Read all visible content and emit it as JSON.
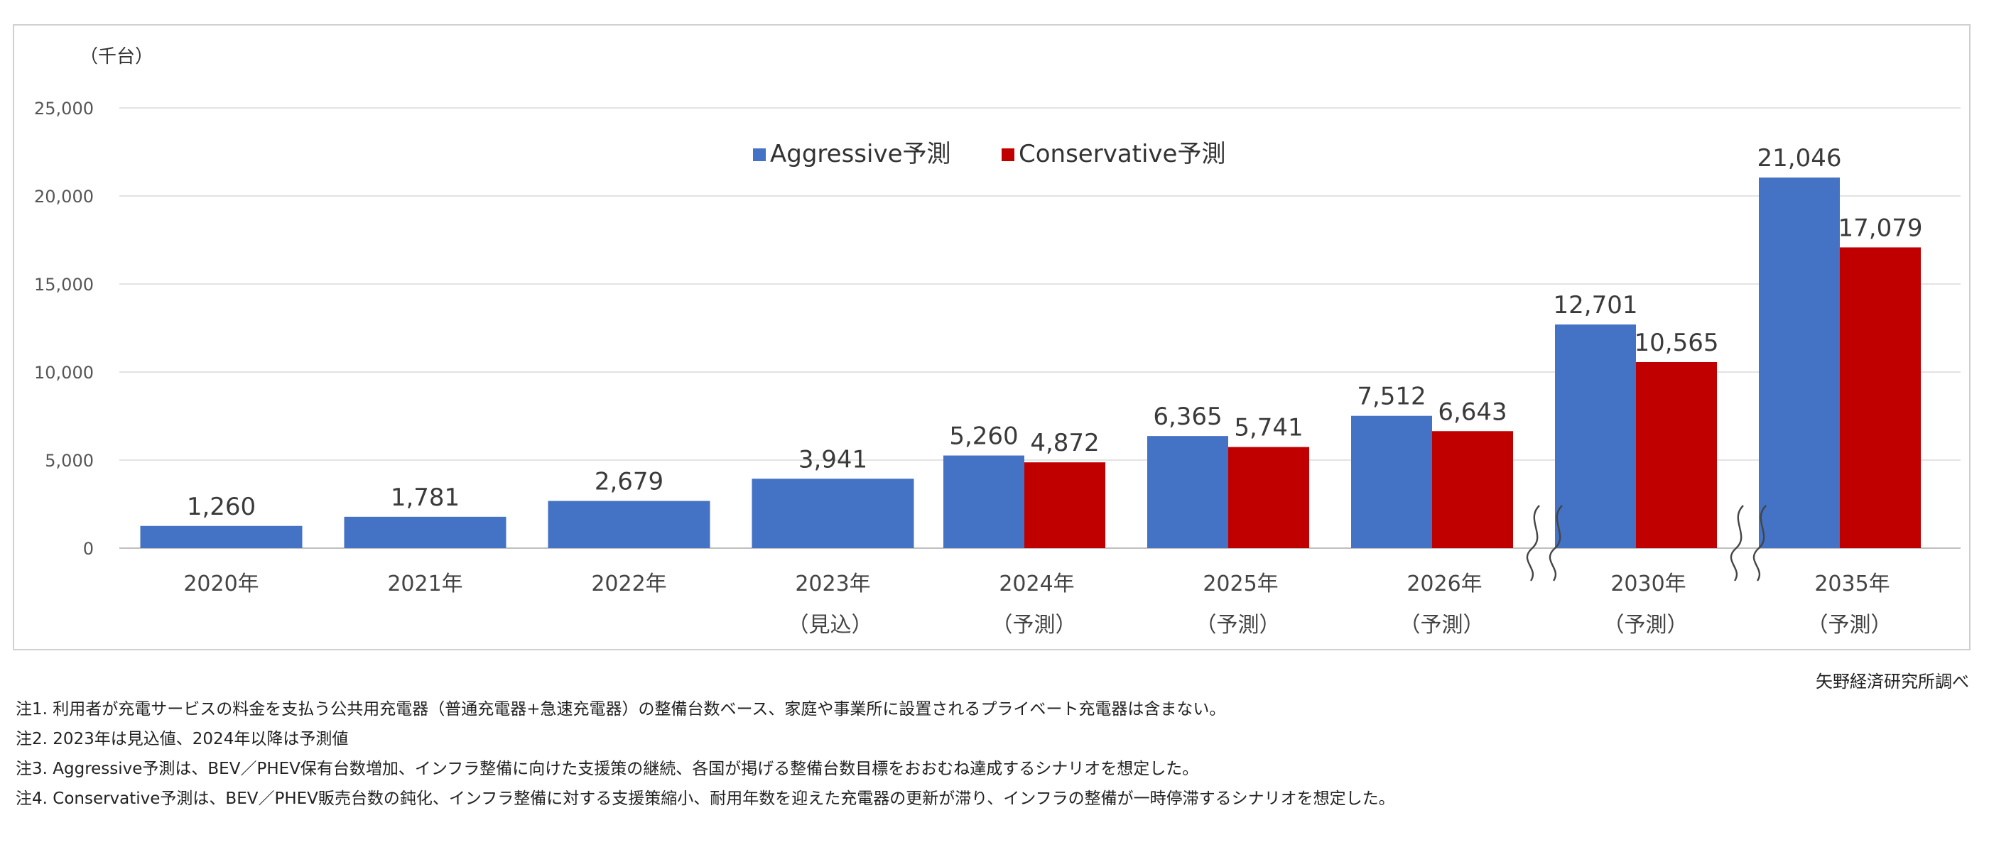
{
  "chart_data": {
    "type": "bar",
    "unit_label": "（千台）",
    "yticks": [
      "25,000",
      "20,000",
      "15,000",
      "10,000",
      "5,000",
      "0"
    ],
    "ylim": [
      0,
      25000
    ],
    "categories": [
      {
        "year": "2020年",
        "sub": ""
      },
      {
        "year": "2021年",
        "sub": ""
      },
      {
        "year": "2022年",
        "sub": ""
      },
      {
        "year": "2023年",
        "sub": "（見込）"
      },
      {
        "year": "2024年",
        "sub": "（予測）"
      },
      {
        "year": "2025年",
        "sub": "（予測）"
      },
      {
        "year": "2026年",
        "sub": "（予測）"
      },
      {
        "year": "2030年",
        "sub": "（予測）"
      },
      {
        "year": "2035年",
        "sub": "（予測）"
      }
    ],
    "series": [
      {
        "name": "Aggressive予測",
        "color": "#4472c4",
        "values": [
          1260,
          1781,
          2679,
          3941,
          5260,
          6365,
          7512,
          12701,
          21046
        ],
        "labels": [
          "1,260",
          "1,781",
          "2,679",
          "3,941",
          "5,260",
          "6,365",
          "7,512",
          "12,701",
          "21,046"
        ]
      },
      {
        "name": "Conservative予測",
        "color": "#c00000",
        "values": [
          null,
          null,
          null,
          null,
          4872,
          5741,
          6643,
          10565,
          17079
        ],
        "labels": [
          "",
          "",
          "",
          "",
          "4,872",
          "5,741",
          "6,643",
          "10,565",
          "17,079"
        ]
      }
    ],
    "axis_breaks_after": [
      "2026年",
      "2030年"
    ],
    "legend_position": "top-center"
  },
  "source": "矢野経済研究所調べ",
  "notes": [
    "注1.  利用者が充電サービスの料金を支払う公共用充電器（普通充電器+急速充電器）の整備台数ベース、家庭や事業所に設置されるプライベート充電器は含まない。",
    "注2.  2023年は見込値、2024年以降は予測値",
    "注3.  Aggressive予測は、BEV／PHEV保有台数増加、インフラ整備に向けた支援策の継続、各国が掲げる整備台数目標をおおむね達成するシナリオを想定した。",
    "注4.  Conservative予測は、BEV／PHEV販売台数の鈍化、インフラ整備に対する支援策縮小、耐用年数を迎えた充電器の更新が滞り、インフラの整備が一時停滞するシナリオを想定した。"
  ]
}
